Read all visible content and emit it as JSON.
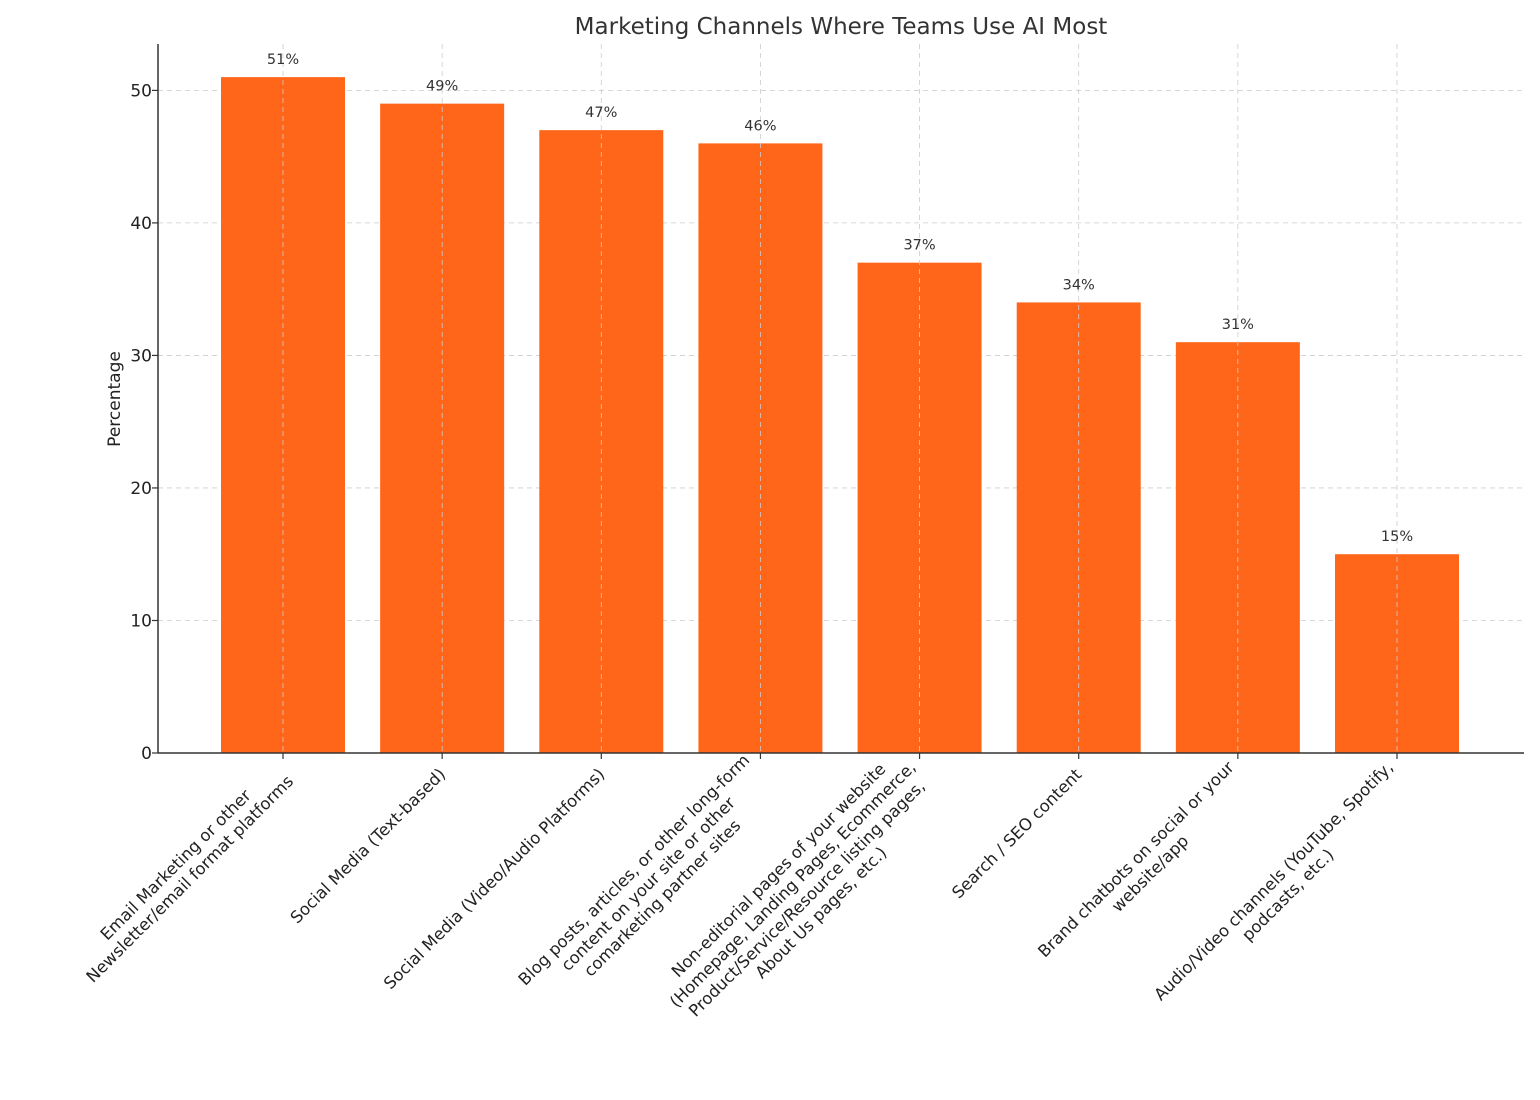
{
  "chart_data": {
    "type": "bar",
    "title": "Marketing Channels Where Teams Use AI Most",
    "xlabel": "",
    "ylabel": "Percentage",
    "ylim": [
      0,
      53.5
    ],
    "yticks": [
      0,
      10,
      20,
      30,
      40,
      50
    ],
    "grid": true,
    "bar_color": "#ff6619",
    "categories": [
      [
        "Email Marketing or other",
        "Newsletter/email format platforms"
      ],
      [
        "Social Media (Text-based)"
      ],
      [
        "Social Media (Video/Audio Platforms)"
      ],
      [
        "Blog posts, articles, or other long-form",
        "content on your site or other",
        "comarketing partner sites"
      ],
      [
        "Non-editorial pages of your website",
        "(Homepage, Landing Pages, Ecommerce,",
        "Product/Service/Resource listing pages,",
        "About Us pages, etc.)"
      ],
      [
        "Search / SEO content"
      ],
      [
        "Brand chatbots on social or your",
        "website/app"
      ],
      [
        "Audio/Video channels (YouTube, Spotify,",
        "podcasts, etc.)"
      ]
    ],
    "values": [
      51,
      49,
      47,
      46,
      37,
      34,
      31,
      15
    ],
    "data_labels": [
      "51%",
      "49%",
      "47%",
      "46%",
      "37%",
      "34%",
      "31%",
      "15%"
    ]
  }
}
